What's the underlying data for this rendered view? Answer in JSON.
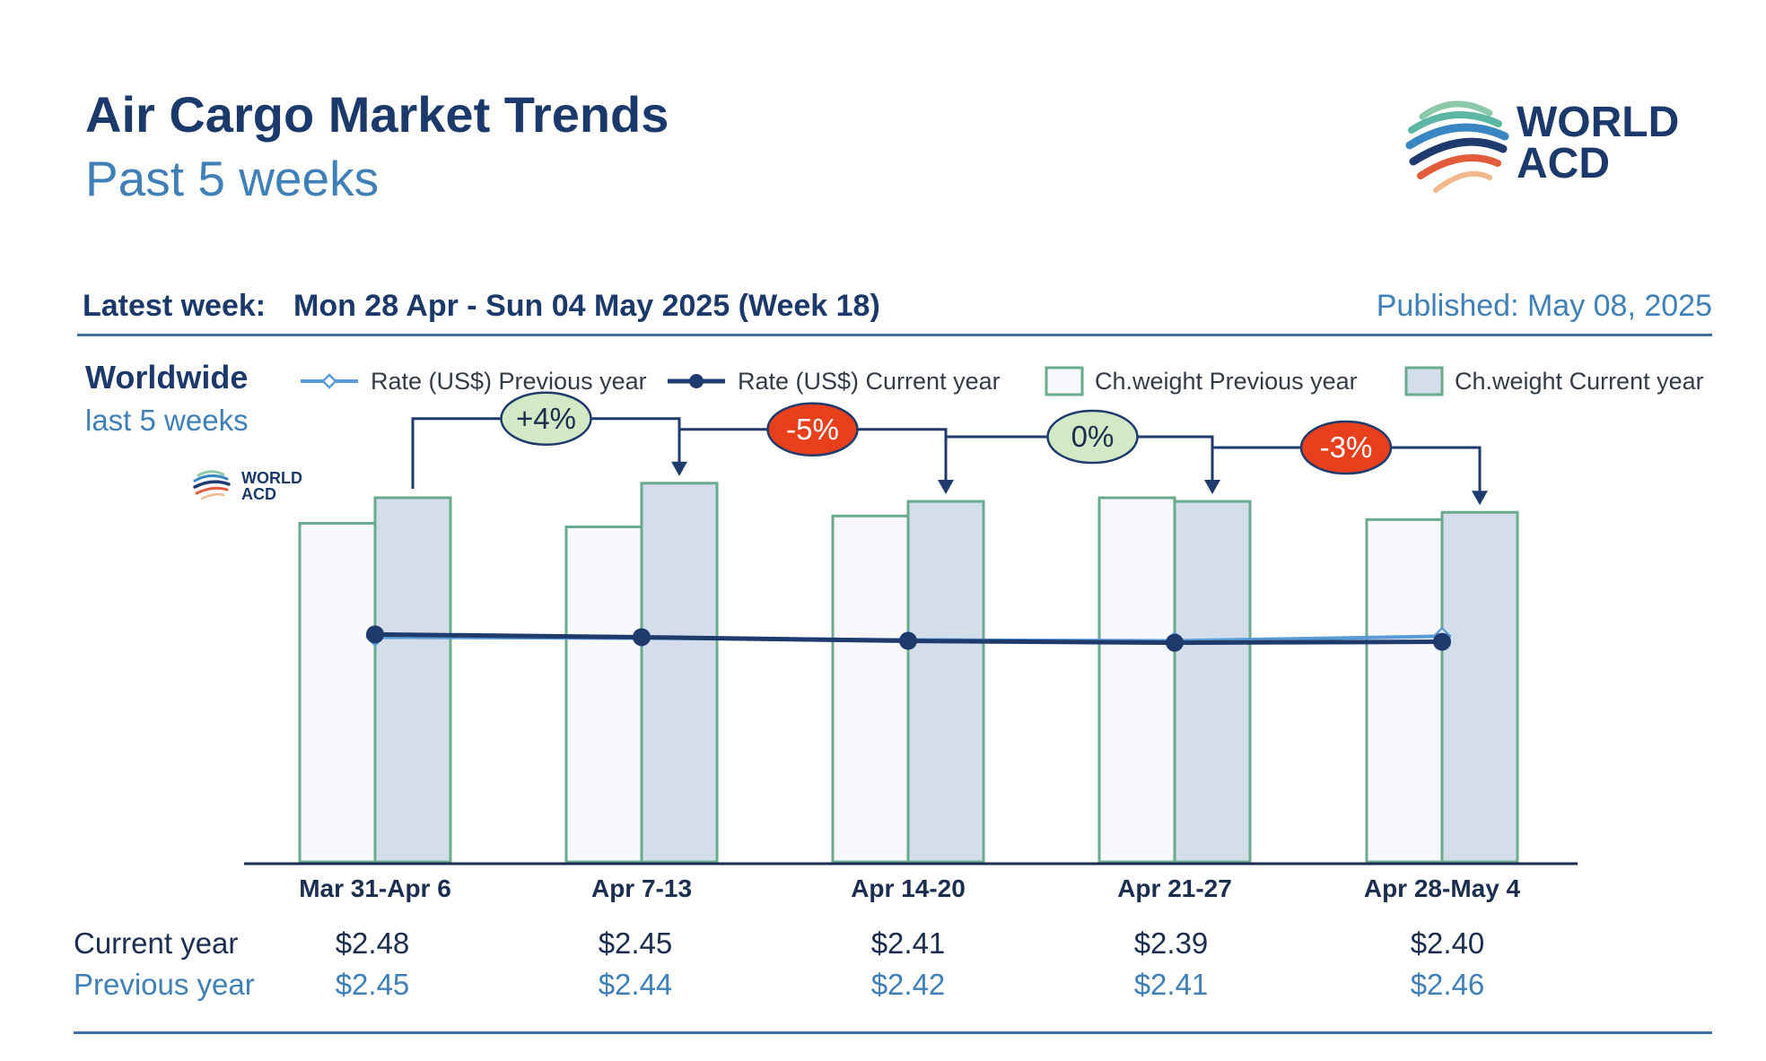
{
  "header": {
    "title": "Air Cargo Market Trends",
    "subtitle": "Past 5 weeks",
    "latest_week_label": "Latest week:",
    "latest_week_value": "Mon 28 Apr - Sun 04 May 2025 (Week 18)",
    "published": "Published: May 08, 2025"
  },
  "logo": {
    "line1": "WORLD",
    "line2": "ACD"
  },
  "region": {
    "title": "Worldwide",
    "subtitle": "last 5 weeks"
  },
  "legend": [
    {
      "label": "Rate (US$) Previous year",
      "icon": "line-diamond-icon",
      "color": "#5b9bd5"
    },
    {
      "label": "Rate (US$) Current year",
      "icon": "line-dot-icon",
      "color": "#1f3b6e"
    },
    {
      "label": "Ch.weight Previous year",
      "icon": "box-light-icon",
      "color": "#f7f8fb"
    },
    {
      "label": "Ch.weight Current year",
      "icon": "box-blue-icon",
      "color": "#d4deeb"
    }
  ],
  "colors": {
    "bar_outline": "#6aab8e",
    "bar_prev_fill": "#f7f8fb",
    "bar_cur_fill": "#d4deeb",
    "rate_current": "#1f3b6e",
    "rate_previous": "#5b9bd5",
    "change_positive": "#d3e8c4",
    "change_negative": "#e8401c",
    "change_neutral": "#d3e8c4"
  },
  "chart_data": {
    "type": "bar",
    "categories": [
      "Mar 31-Apr 6",
      "Apr 7-13",
      "Apr 14-20",
      "Apr 21-27",
      "Apr 28-May 4"
    ],
    "series": [
      {
        "name": "Ch.weight Previous year",
        "kind": "bar",
        "values": [
          93,
          92,
          95,
          100,
          94
        ]
      },
      {
        "name": "Ch.weight Current year",
        "kind": "bar",
        "values": [
          100,
          104,
          99,
          99,
          96
        ]
      },
      {
        "name": "Rate (US$) Previous year",
        "kind": "line",
        "values": [
          2.45,
          2.44,
          2.42,
          2.41,
          2.46
        ]
      },
      {
        "name": "Rate (US$) Current year",
        "kind": "line",
        "values": [
          2.48,
          2.45,
          2.41,
          2.39,
          2.4
        ]
      }
    ],
    "weight_ylim": [
      0,
      100
    ],
    "rate_ylim": [
      0,
      3.97
    ],
    "week_changes": [
      "+4%",
      "-5%",
      "0%",
      "-3%"
    ],
    "change_status": [
      "positive",
      "negative",
      "neutral",
      "negative"
    ]
  },
  "rate_table": {
    "current_label": "Current year",
    "previous_label": "Previous year",
    "current_values": [
      "$2.48",
      "$2.45",
      "$2.41",
      "$2.39",
      "$2.40"
    ],
    "previous_values": [
      "$2.45",
      "$2.44",
      "$2.42",
      "$2.41",
      "$2.46"
    ]
  }
}
